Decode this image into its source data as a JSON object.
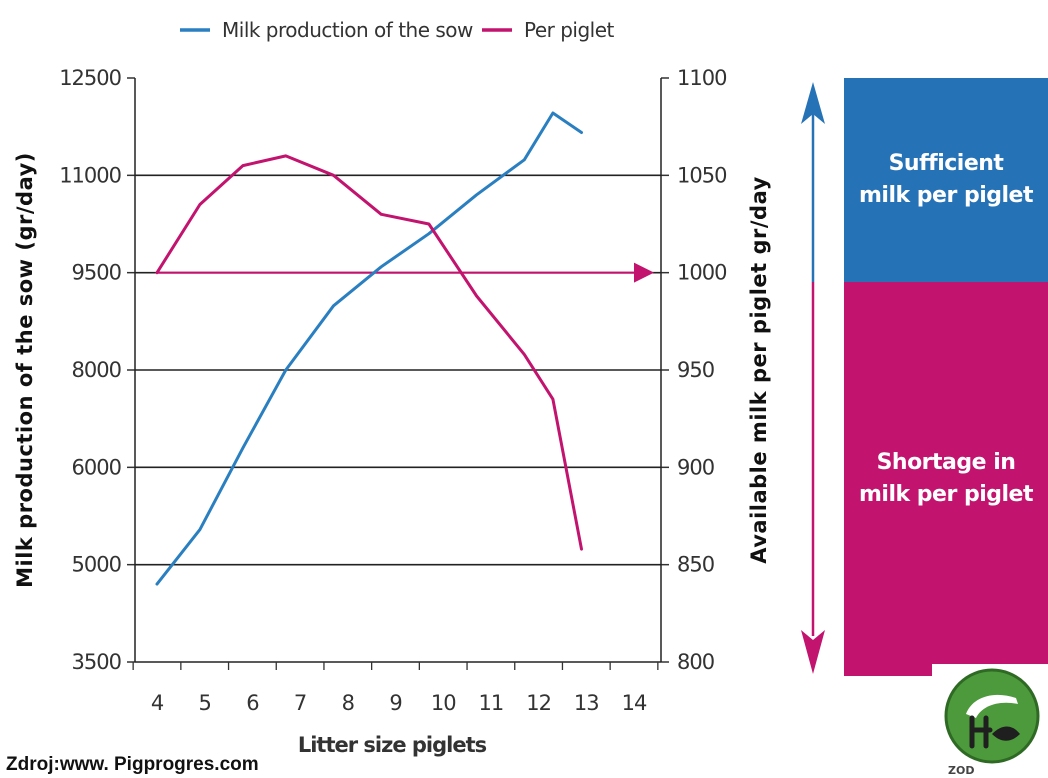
{
  "chart_data": {
    "type": "line",
    "title": "",
    "legend": {
      "placement": "top"
    },
    "xlabel": "Litter size piglets",
    "ylabel_left": "Milk production of the sow (gr/day)",
    "ylabel_right": "Available milk per piglet gr/day",
    "x_ticks": [
      "4",
      "5",
      "6",
      "7",
      "8",
      "9",
      "10",
      "11",
      "12",
      "13",
      "14"
    ],
    "y_left_ticks": [
      "12500",
      "11000",
      "9500",
      "8000",
      "6000",
      "5000",
      "3500"
    ],
    "y_right_ticks": [
      "1100",
      "1050",
      "1000",
      "950",
      "900",
      "850",
      "800"
    ],
    "y_right_range": [
      800,
      1100
    ],
    "grid": true,
    "series": [
      {
        "name": "Milk production of the sow",
        "color": "#2a7fc0",
        "axis": "right",
        "x": [
          4,
          4.9,
          5.8,
          6.7,
          7.7,
          8.7,
          9.7,
          10.7,
          11.7,
          12.3,
          12.9
        ],
        "y": [
          840,
          868,
          910,
          950,
          983,
          1003,
          1020,
          1040,
          1058,
          1082,
          1072
        ]
      },
      {
        "name": "Per piglet",
        "color": "#c2136f",
        "axis": "right",
        "x": [
          4,
          4.9,
          5.8,
          6.7,
          7.7,
          8.7,
          9.7,
          10.7,
          11.7,
          12.3,
          12.9
        ],
        "y": [
          1000,
          1035,
          1055,
          1060,
          1050,
          1030,
          1025,
          988,
          958,
          935,
          858
        ]
      }
    ],
    "reference_line": {
      "value": 1000,
      "axis": "right",
      "color": "#c2136f"
    }
  },
  "legend_items": [
    {
      "label": "Milk production of the sow",
      "color": "#2a7fc0"
    },
    {
      "label": "Per piglet",
      "color": "#c2136f"
    }
  ],
  "zones": {
    "sufficient": {
      "label": "Sufficient\nmilk per piglet",
      "color": "#2672b6"
    },
    "shortage": {
      "label": "Shortage in\nmilk per piglet",
      "color": "#c2136f"
    }
  },
  "source": "Zdroj:www. Pigprogres.com",
  "logo": {
    "text": "ZOD"
  }
}
